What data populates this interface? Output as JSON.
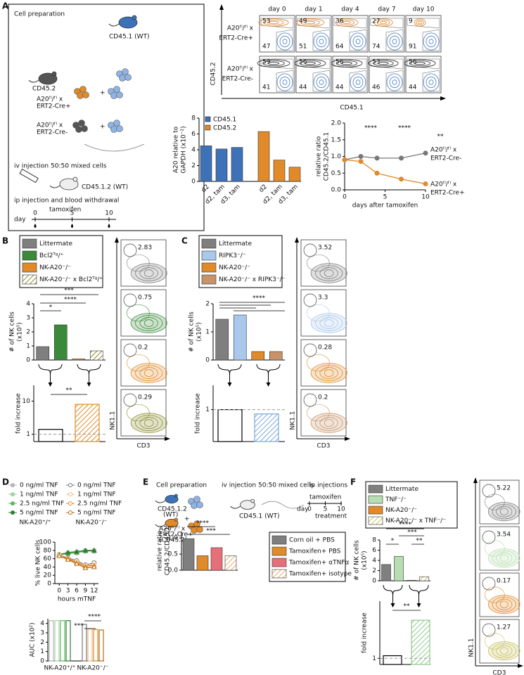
{
  "panels": {
    "A": {
      "label": "A",
      "schema": {
        "title": "Cell preparation",
        "donor_wt": "CD45.1 (WT)",
        "donor_ko": "CD45.2",
        "cre_pos": [
          "A20ᶠˡ/ᶠˡ x",
          "ERT2-Cre+"
        ],
        "cre_neg": [
          "A20ᶠˡ/ᶠˡ x",
          "ERT2-Cre-"
        ],
        "injection": "iv injection 50:50 mixed cells",
        "recipient": "CD45.1.2 (WT)",
        "treatment": "ip injection and blood withdrawal",
        "drug": "tamoxifen",
        "day": "day",
        "timeline_days": [
          0,
          5,
          10
        ]
      },
      "flow": {
        "days": [
          "day 0",
          "day 1",
          "day 4",
          "day 7",
          "day 10"
        ],
        "row_labels": [
          [
            "A20ᶠˡ/ᶠˡ x",
            "ERT2-Cre+"
          ],
          [
            "A20ᶠˡ/ᶠˡ x",
            "ERT2-Cre-"
          ]
        ],
        "row_colors": [
          "#d9822b",
          "#222222"
        ],
        "gate_color": "#4a7cc4",
        "gates": [
          [
            [
              53,
              47
            ],
            [
              49,
              51
            ],
            [
              36,
              64
            ],
            [
              27,
              74
            ],
            [
              9,
              91
            ]
          ],
          [
            [
              59,
              41
            ],
            [
              56,
              44
            ],
            [
              56,
              44
            ],
            [
              53,
              46
            ],
            [
              56,
              44
            ]
          ]
        ],
        "y_axis": "CD45.2",
        "x_axis": "CD45.1"
      },
      "expression": {
        "type": "bar",
        "ylabel": [
          "A20 relative to",
          "GAPDH (x10⁻²)"
        ],
        "ylim": [
          0,
          8
        ],
        "yticks": [
          0,
          2,
          4,
          6,
          8
        ],
        "categories": [
          "d2",
          "d2, tam",
          "d3, tam",
          "d2",
          "d2, tam",
          "d3, tam"
        ],
        "values": [
          4.5,
          4.1,
          4.3,
          6.3,
          2.7,
          1.8
        ],
        "colors": [
          "#3d72b8",
          "#3d72b8",
          "#3d72b8",
          "#e08a2a",
          "#e08a2a",
          "#e08a2a"
        ],
        "legend": [
          {
            "name": "CD45.1",
            "color": "#3d72b8"
          },
          {
            "name": "CD45.2",
            "color": "#e08a2a"
          }
        ]
      },
      "ratio": {
        "type": "line",
        "ylabel": [
          "relative ratio",
          "CD45.2/CD45.1"
        ],
        "xlabel": "days after tamoxifen",
        "x": [
          0,
          2,
          4,
          7,
          10
        ],
        "xlim": [
          0,
          10
        ],
        "xticks": [
          0,
          5,
          10
        ],
        "ylim": [
          0,
          2
        ],
        "yticks": [
          {
            "value": 0,
            "label": "0.0"
          },
          {
            "value": 0.5,
            "label": "0.5"
          },
          {
            "value": 1,
            "label": "1.0"
          },
          {
            "value": 1.5,
            "label": "1.5"
          },
          {
            "value": 2,
            "label": "2.0"
          }
        ],
        "series": [
          {
            "name": [
              "A20ᶠˡ/ᶠˡ x",
              "ERT2-Cre-"
            ],
            "color": "#777777",
            "values": [
              0.9,
              1.0,
              0.95,
              0.95,
              1.1
            ]
          },
          {
            "name": [
              "A20ᶠˡ/ᶠˡ x",
              "ERT2-Cre+"
            ],
            "color": "#e08a2a",
            "values": [
              0.9,
              0.85,
              0.5,
              0.32,
              0.18
            ]
          }
        ],
        "stars": [
          "****",
          "****",
          "**"
        ]
      }
    },
    "B": {
      "label": "B",
      "legend": [
        {
          "name": "Littermate",
          "color": "#7f7f7f"
        },
        {
          "name": "Bcl2ᵀᵍ/⁺",
          "color": "#3a8a3a"
        },
        {
          "name": "NK-A20⁻/⁻",
          "color": "#e08a2a"
        },
        {
          "name": "NK-A20⁻/⁻ x Bcl2ᵀᵍ/⁺",
          "color": "#8c8c2e",
          "hatch": true
        }
      ],
      "counts": {
        "type": "bar",
        "ylabel": [
          "# of NK cells",
          "(x10⁵)"
        ],
        "ylim": [
          0,
          4
        ],
        "yticks": [
          0,
          1,
          2,
          3,
          4
        ],
        "values": [
          0.95,
          2.5,
          0.08,
          0.65
        ],
        "colors": [
          "#7f7f7f",
          "#3a8a3a",
          "#e08a2a",
          "#8c8c2e"
        ],
        "hatch": [
          false,
          false,
          false,
          true
        ],
        "stars": [
          "***",
          "*",
          "****"
        ]
      },
      "fold": {
        "type": "bar",
        "log": true,
        "ylabel": [
          "fold increase"
        ],
        "ylim": [
          0.6,
          30
        ],
        "yticks": [
          1,
          10
        ],
        "values": [
          1.4,
          8
        ],
        "colors": [
          "#000000",
          "#e08a2a"
        ],
        "hatch": [
          false,
          true
        ],
        "outline": true,
        "stars": [
          "**"
        ]
      },
      "flow": {
        "gates": [
          2.83,
          0.75,
          0.2,
          0.29
        ],
        "y_axis": "NK1.1",
        "x_axis": "CD3"
      }
    },
    "C": {
      "label": "C",
      "legend": [
        {
          "name": "Littermate",
          "color": "#7f7f7f"
        },
        {
          "name": "RIPK3⁻/⁻",
          "color": "#a9c8ec"
        },
        {
          "name": "NK-A20⁻/⁻",
          "color": "#e08a2a"
        },
        {
          "name": "NK-A20⁻/⁻ x RIPK3⁻/⁻",
          "color": "#c9936a"
        }
      ],
      "counts": {
        "type": "bar",
        "ylabel": [
          "# of NK cells",
          "(x10⁵)"
        ],
        "ylim": [
          0,
          2
        ],
        "yticks": [
          0,
          1,
          2
        ],
        "values": [
          1.45,
          1.6,
          0.3,
          0.3
        ],
        "colors": [
          "#7f7f7f",
          "#a9c8ec",
          "#e08a2a",
          "#c9936a"
        ],
        "hatch": [
          false,
          false,
          false,
          false
        ],
        "stars": [
          "****"
        ]
      },
      "fold": {
        "type": "bar",
        "log": true,
        "ylabel": [
          "fold increase"
        ],
        "ylim": [
          0.3,
          2.5
        ],
        "yticks": [
          1
        ],
        "values": [
          1.0,
          0.85
        ],
        "colors": [
          "#000000",
          "#7aa6dc"
        ],
        "hatch": [
          false,
          true
        ],
        "outline": true,
        "stars": []
      },
      "flow": {
        "gates": [
          3.52,
          3.3,
          0.28,
          0.2
        ],
        "y_axis": "NK1.1",
        "x_axis": "CD3"
      }
    },
    "D": {
      "label": "D",
      "genotypes": [
        "NK-A20⁺/⁺",
        "NK-A20⁻/⁻"
      ],
      "survival": {
        "type": "line",
        "ylabel": [
          "% live NK cells"
        ],
        "xlabel": "hours mTNF",
        "x": [
          0,
          3,
          6,
          9,
          12
        ],
        "xlim": [
          -1.5,
          13.5
        ],
        "xticks": [
          0,
          3,
          6,
          9,
          12
        ],
        "ylim": [
          0,
          100
        ],
        "yticks": [
          0,
          20,
          40,
          60,
          80,
          100
        ],
        "series": [
          {
            "name": "0 ng/ml TNF",
            "color": "#b5b5b5",
            "marker": "circle",
            "values": [
              68,
              72,
              74,
              78,
              78
            ]
          },
          {
            "name": "1 ng/ml TNF",
            "color": "#9fd49f",
            "marker": "square",
            "values": [
              70,
              74,
              76,
              80,
              80
            ]
          },
          {
            "name": "2.5 ng/ml TNF",
            "color": "#5cb85c",
            "marker": "triangle",
            "values": [
              70,
              73,
              75,
              79,
              79
            ]
          },
          {
            "name": "5 ng/ml TNF",
            "color": "#2e7d32",
            "marker": "triangle",
            "values": [
              70,
              75,
              77,
              80,
              80
            ]
          },
          {
            "name": "0 ng/ml TNF",
            "color": "#777777",
            "marker": "circle",
            "open": true,
            "values": [
              68,
              62,
              55,
              45,
              50
            ]
          },
          {
            "name": "1 ng/ml TNF",
            "color": "#f2b880",
            "marker": "square",
            "open": true,
            "values": [
              68,
              60,
              52,
              44,
              45
            ]
          },
          {
            "name": "2.5 ng/ml TNF",
            "color": "#e08a2a",
            "marker": "triangle",
            "open": true,
            "values": [
              67,
              60,
              50,
              42,
              44
            ]
          },
          {
            "name": "5 ng/ml TNF",
            "color": "#b86a12",
            "marker": "triangle",
            "open": true,
            "values": [
              67,
              58,
              48,
              38,
              40
            ]
          }
        ]
      },
      "auc": {
        "type": "bar",
        "ylabel": [
          "AUC (x10²)"
        ],
        "ylim": [
          0,
          4.5
        ],
        "yticks": [
          0,
          1,
          2,
          3,
          4
        ],
        "values": [
          4.3,
          4.3,
          4.3,
          4.3,
          3.9,
          3.4,
          3.35,
          3.3
        ],
        "colors": [
          "#b5b5b5",
          "#9fd49f",
          "#5cb85c",
          "#2e7d32",
          "#777777",
          "#f2b880",
          "#e08a2a",
          "#b86a12"
        ],
        "hatch": [
          false,
          false,
          false,
          false,
          false,
          false,
          false,
          false
        ],
        "outline": true,
        "stars": [
          "****",
          "***"
        ]
      }
    },
    "E": {
      "label": "E",
      "schema": {
        "title": "Cell preparation",
        "donor_wt": [
          "CD45.1.2",
          "(WT)"
        ],
        "donor_ko": [
          "A20ᶠˡ/ᶠˡ x",
          "ERT2-Cre+",
          "(CD45.2)"
        ],
        "injection": "iv injection 50:50 mixed cells",
        "recipient": "CD45.1 (WT)",
        "treatment_title": "ip injections",
        "drug": "tamoxifen",
        "day": "day",
        "timeline_days": [
          0,
          5,
          10
        ],
        "treatment": "treatment"
      },
      "ratio": {
        "type": "bar",
        "ylabel": [
          "relative ratio",
          "CD45.2/CD45.1"
        ],
        "ylim": [
          0,
          1.2
        ],
        "yticks": [
          {
            "value": 0,
            "label": "0.0"
          },
          {
            "value": 0.5,
            "label": "0.5"
          },
          {
            "value": 1,
            "label": "1.0"
          }
        ],
        "values": [
          0.98,
          0.45,
          0.7,
          0.45
        ],
        "colors": [
          "#7f7f7f",
          "#e08a2a",
          "#e5707a",
          "#e8a86a"
        ],
        "hatch": [
          false,
          false,
          false,
          true
        ],
        "stars": [
          "****",
          "***"
        ]
      },
      "legend": [
        {
          "name": "Corn oil    + PBS",
          "color": "#7f7f7f"
        },
        {
          "name": "Tamoxifen+ PBS",
          "color": "#e08a2a"
        },
        {
          "name": "Tamoxifen+ αTNFα",
          "color": "#e5707a"
        },
        {
          "name": "Tamoxifen+ isotype",
          "color": "#e8a86a",
          "hatch": true
        }
      ]
    },
    "F": {
      "label": "F",
      "legend": [
        {
          "name": "Littermate",
          "color": "#7f7f7f"
        },
        {
          "name": "TNF⁻/⁻",
          "color": "#b7deb0"
        },
        {
          "name": "NK-A20⁻/⁻",
          "color": "#e08a2a"
        },
        {
          "name": "NK-A20⁻/⁻ x TNF⁻/⁻",
          "color": "#c8c060",
          "hatch": true
        }
      ],
      "counts": {
        "type": "bar",
        "ylabel": [
          "# of NK cells",
          "(x10⁵)"
        ],
        "ylim": [
          0,
          8
        ],
        "yticks": [
          0,
          2,
          4,
          6,
          8
        ],
        "values": [
          3.2,
          4.8,
          0.1,
          0.8
        ],
        "colors": [
          "#7f7f7f",
          "#b7deb0",
          "#e08a2a",
          "#c8c060"
        ],
        "hatch": [
          false,
          false,
          false,
          true
        ],
        "stars": [
          "****",
          "*",
          "***",
          "**"
        ]
      },
      "fold": {
        "type": "bar",
        "log": true,
        "ylabel": [
          "fold increase"
        ],
        "ylim": [
          0.8,
          8
        ],
        "yticks": [
          1
        ],
        "values": [
          1.1,
          4
        ],
        "colors": [
          "#000000",
          "#8fc98a"
        ],
        "hatch": [
          false,
          true
        ],
        "outline": true,
        "stars": [
          "**"
        ]
      },
      "flow": {
        "gates": [
          5.22,
          3.54,
          0.17,
          1.27
        ],
        "y_axis": "NK1.1",
        "x_axis": "CD3"
      }
    }
  }
}
